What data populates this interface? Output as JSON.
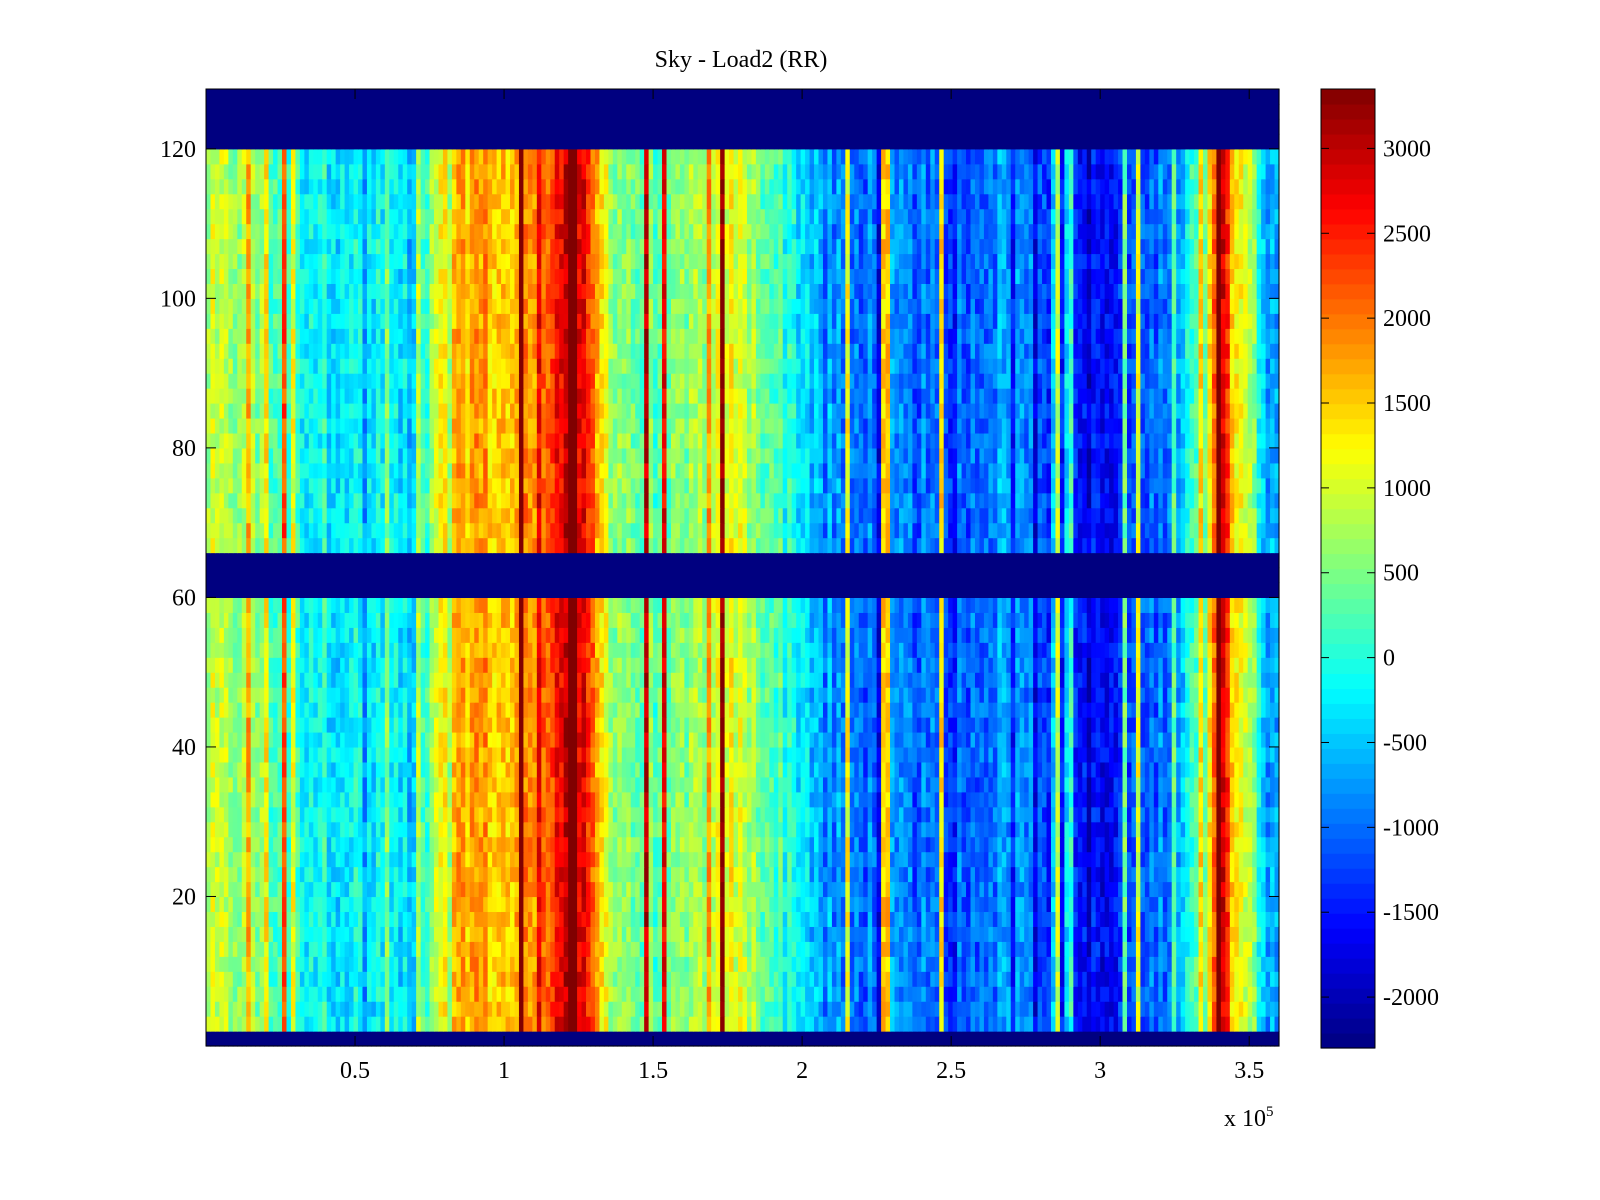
{
  "chart_data": {
    "type": "heatmap",
    "title": "Sky - Load2 (RR)",
    "xlabel": "",
    "ylabel": "",
    "x_multiplier_label": "x 10",
    "x_multiplier_exponent": "5",
    "xlim": [
      0,
      3.6
    ],
    "ylim": [
      0,
      128
    ],
    "x_ticks": [
      0.5,
      1,
      1.5,
      2,
      2.5,
      3,
      3.5
    ],
    "x_tick_labels": [
      "0.5",
      "1",
      "1.5",
      "2",
      "2.5",
      "3",
      "3.5"
    ],
    "y_ticks": [
      20,
      40,
      60,
      80,
      100,
      120
    ],
    "y_tick_labels": [
      "20",
      "40",
      "60",
      "80",
      "100",
      "120"
    ],
    "colormap": "jet",
    "clim": [
      -2300,
      3350
    ],
    "colorbar": {
      "ticks": [
        3000,
        2500,
        2000,
        1500,
        1000,
        500,
        0,
        -500,
        -1000,
        -1500,
        -2000
      ],
      "tick_labels": [
        "3000",
        "2500",
        "2000",
        "1500",
        "1000",
        "500",
        "0",
        "-500",
        "-1000",
        "-1500",
        "-2000"
      ],
      "placement": "right"
    },
    "masked_row_bands": [
      [
        0,
        3
      ],
      [
        61,
        67
      ],
      [
        121,
        128
      ]
    ],
    "masked_value": -2300,
    "column_profile": {
      "x": [
        0.0,
        0.15,
        0.3,
        0.5,
        0.65,
        0.7,
        0.8,
        0.9,
        1.0,
        1.1,
        1.18,
        1.23,
        1.3,
        1.35,
        1.45,
        1.6,
        1.75,
        1.9,
        2.05,
        2.15,
        2.3,
        2.5,
        2.7,
        2.85,
        3.0,
        3.1,
        3.25,
        3.35,
        3.4,
        3.45,
        3.6
      ],
      "value": [
        800,
        700,
        0,
        -200,
        -300,
        -500,
        1300,
        1800,
        1500,
        1900,
        2600,
        3300,
        1900,
        900,
        400,
        400,
        1200,
        300,
        -500,
        -1000,
        -900,
        -1100,
        -700,
        -1300,
        -1700,
        -1400,
        -700,
        500,
        3300,
        1600,
        -700
      ]
    }
  }
}
